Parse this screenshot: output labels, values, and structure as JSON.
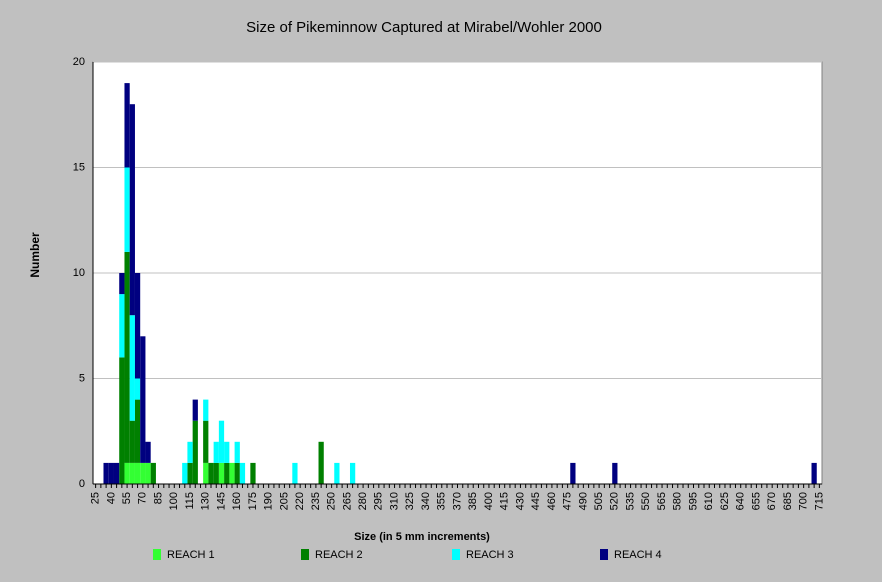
{
  "chart_data": {
    "type": "stacked_bar",
    "title": "Size of Pikeminnow Captured at Mirabel/Wohler 2000",
    "x_label": "Size (in 5 mm increments)",
    "y_label": "Number",
    "categories": [
      25,
      null,
      null,
      40,
      null,
      null,
      55,
      null,
      null,
      70,
      null,
      null,
      85,
      null,
      null,
      100,
      null,
      null,
      115,
      null,
      null,
      130,
      null,
      null,
      145,
      null,
      null,
      160,
      null,
      null,
      175,
      null,
      null,
      190,
      null,
      null,
      205,
      null,
      null,
      220,
      null,
      null,
      235,
      null,
      null,
      250,
      null,
      null,
      265,
      null,
      null,
      280,
      null,
      null,
      295,
      null,
      null,
      310,
      null,
      null,
      325,
      null,
      null,
      340,
      null,
      null,
      355,
      null,
      null,
      370,
      null,
      null,
      385,
      null,
      null,
      400,
      null,
      null,
      415,
      null,
      null,
      430,
      null,
      null,
      445,
      null,
      null,
      460,
      null,
      null,
      475,
      null,
      null,
      490,
      null,
      null,
      505,
      null,
      null,
      520,
      null,
      null,
      535,
      null,
      null,
      550,
      null,
      null,
      565,
      null,
      null,
      580,
      null,
      null,
      595,
      null,
      null,
      610,
      null,
      null,
      625,
      null,
      null,
      640,
      null,
      null,
      655,
      null,
      null,
      670,
      null,
      null,
      685,
      null,
      null,
      700,
      null,
      null,
      715
    ],
    "series": [
      {
        "name": "REACH 1",
        "color": "#33ff33",
        "values": [
          0,
          0,
          0,
          0,
          0,
          0,
          1,
          1,
          1,
          1,
          1,
          0,
          0,
          0,
          0,
          0,
          0,
          0,
          0,
          0,
          0,
          1,
          0,
          0,
          1,
          0,
          1,
          0,
          0,
          0,
          0,
          0,
          0,
          0,
          0,
          0,
          0,
          0,
          0,
          0,
          0,
          0,
          0,
          0,
          0,
          0,
          0,
          0,
          0,
          0,
          0,
          0,
          0,
          0,
          0,
          0,
          0,
          0,
          0,
          0,
          0,
          0,
          0,
          0,
          0,
          0,
          0,
          0,
          0,
          0,
          0,
          0,
          0,
          0,
          0,
          0,
          0,
          0,
          0,
          0,
          0,
          0,
          0,
          0,
          0,
          0,
          0,
          0,
          0,
          0,
          0,
          0,
          0,
          0,
          0,
          0,
          0,
          0,
          0,
          0,
          0,
          0,
          0,
          0,
          0,
          0,
          0,
          0,
          0,
          0,
          0,
          0,
          0,
          0,
          0,
          0,
          0,
          0,
          0,
          0,
          0,
          0,
          0,
          0,
          0,
          0,
          0,
          0,
          0,
          0,
          0,
          0,
          0,
          0,
          0,
          0,
          0,
          0,
          0
        ]
      },
      {
        "name": "REACH 2",
        "color": "#008000",
        "values": [
          0,
          0,
          0,
          0,
          0,
          6,
          10,
          2,
          3,
          0,
          0,
          1,
          0,
          0,
          0,
          0,
          0,
          0,
          1,
          3,
          0,
          2,
          1,
          1,
          0,
          1,
          0,
          1,
          0,
          0,
          1,
          0,
          0,
          0,
          0,
          0,
          0,
          0,
          0,
          0,
          0,
          0,
          0,
          2,
          0,
          0,
          0,
          0,
          0,
          0,
          0,
          0,
          0,
          0,
          0,
          0,
          0,
          0,
          0,
          0,
          0,
          0,
          0,
          0,
          0,
          0,
          0,
          0,
          0,
          0,
          0,
          0,
          0,
          0,
          0,
          0,
          0,
          0,
          0,
          0,
          0,
          0,
          0,
          0,
          0,
          0,
          0,
          0,
          0,
          0,
          0,
          0,
          0,
          0,
          0,
          0,
          0,
          0,
          0,
          0,
          0,
          0,
          0,
          0,
          0,
          0,
          0,
          0,
          0,
          0,
          0,
          0,
          0,
          0,
          0,
          0,
          0,
          0,
          0,
          0,
          0,
          0,
          0,
          0,
          0,
          0,
          0,
          0,
          0,
          0,
          0,
          0,
          0,
          0,
          0,
          0,
          0,
          0,
          0
        ]
      },
      {
        "name": "REACH 3",
        "color": "#00ffff",
        "values": [
          0,
          0,
          0,
          0,
          0,
          3,
          4,
          5,
          1,
          0,
          0,
          0,
          0,
          0,
          0,
          0,
          0,
          1,
          1,
          0,
          0,
          1,
          0,
          1,
          2,
          1,
          0,
          1,
          1,
          0,
          0,
          0,
          0,
          0,
          0,
          0,
          0,
          0,
          1,
          0,
          0,
          0,
          0,
          0,
          0,
          0,
          1,
          0,
          0,
          1,
          0,
          0,
          0,
          0,
          0,
          0,
          0,
          0,
          0,
          0,
          0,
          0,
          0,
          0,
          0,
          0,
          0,
          0,
          0,
          0,
          0,
          0,
          0,
          0,
          0,
          0,
          0,
          0,
          0,
          0,
          0,
          0,
          0,
          0,
          0,
          0,
          0,
          0,
          0,
          0,
          0,
          0,
          0,
          0,
          0,
          0,
          0,
          0,
          0,
          0,
          0,
          0,
          0,
          0,
          0,
          0,
          0,
          0,
          0,
          0,
          0,
          0,
          0,
          0,
          0,
          0,
          0,
          0,
          0,
          0,
          0,
          0,
          0,
          0,
          0,
          0,
          0,
          0,
          0,
          0,
          0,
          0,
          0,
          0,
          0,
          0,
          0,
          0,
          0
        ]
      },
      {
        "name": "REACH 4",
        "color": "#000080",
        "values": [
          0,
          0,
          1,
          1,
          1,
          1,
          4,
          10,
          5,
          6,
          1,
          0,
          0,
          0,
          0,
          0,
          0,
          0,
          0,
          1,
          0,
          0,
          0,
          0,
          0,
          0,
          0,
          0,
          0,
          0,
          0,
          0,
          0,
          0,
          0,
          0,
          0,
          0,
          0,
          0,
          0,
          0,
          0,
          0,
          0,
          0,
          0,
          0,
          0,
          0,
          0,
          0,
          0,
          0,
          0,
          0,
          0,
          0,
          0,
          0,
          0,
          0,
          0,
          0,
          0,
          0,
          0,
          0,
          0,
          0,
          0,
          0,
          0,
          0,
          0,
          0,
          0,
          0,
          0,
          0,
          0,
          0,
          0,
          0,
          0,
          0,
          0,
          0,
          0,
          0,
          0,
          1,
          0,
          0,
          0,
          0,
          0,
          0,
          0,
          1,
          0,
          0,
          0,
          0,
          0,
          0,
          0,
          0,
          0,
          0,
          0,
          0,
          0,
          0,
          0,
          0,
          0,
          0,
          0,
          0,
          0,
          0,
          0,
          0,
          0,
          0,
          0,
          0,
          0,
          0,
          0,
          0,
          0,
          0,
          0,
          0,
          0,
          1,
          0
        ]
      }
    ],
    "ylim": [
      0,
      20
    ],
    "yticks": [
      0,
      5,
      10,
      15,
      20
    ],
    "grid": true
  }
}
